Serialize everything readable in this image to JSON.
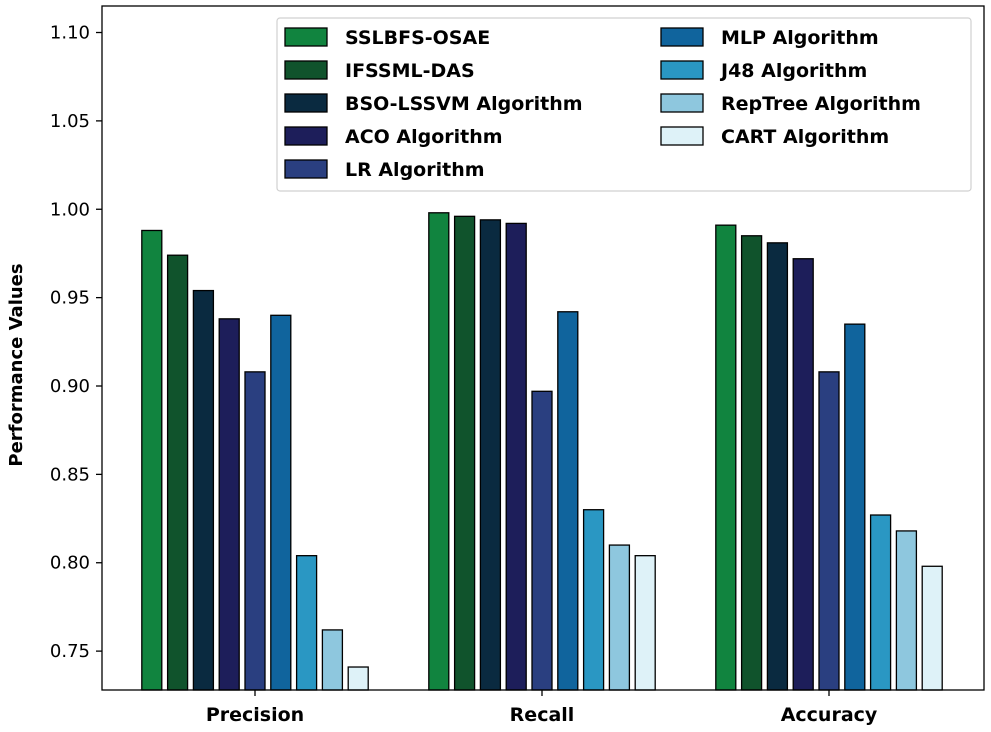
{
  "chart_data": {
    "type": "bar",
    "title": "",
    "xlabel": "",
    "ylabel": "Performance Values",
    "ylim": [
      0.728,
      1.115
    ],
    "yticks": [
      "0.75",
      "0.80",
      "0.85",
      "0.90",
      "0.95",
      "1.00",
      "1.05",
      "1.10"
    ],
    "grid": false,
    "legend_position": "top-right",
    "categories": [
      "Precision",
      "Recall",
      "Accuracy"
    ],
    "series": [
      {
        "name": "SSLBFS-OSAE",
        "color": "#11843f",
        "values": [
          0.988,
          0.998,
          0.991
        ]
      },
      {
        "name": "IFSSML-DAS",
        "color": "#10532c",
        "values": [
          0.974,
          0.996,
          0.985
        ]
      },
      {
        "name": "BSO-LSSVM Algorithm",
        "color": "#0a2a40",
        "values": [
          0.954,
          0.994,
          0.981
        ]
      },
      {
        "name": "ACO Algorithm",
        "color": "#1d1e5a",
        "values": [
          0.938,
          0.992,
          0.972
        ]
      },
      {
        "name": "LR Algorithm",
        "color": "#2a3f80",
        "values": [
          0.908,
          0.897,
          0.908
        ]
      },
      {
        "name": "MLP Algorithm",
        "color": "#10649d",
        "values": [
          0.94,
          0.942,
          0.935
        ]
      },
      {
        "name": "J48 Algorithm",
        "color": "#2a97c3",
        "values": [
          0.804,
          0.83,
          0.827
        ]
      },
      {
        "name": "RepTree Algorithm",
        "color": "#8ec7de",
        "values": [
          0.762,
          0.81,
          0.818
        ]
      },
      {
        "name": "CART Algorithm",
        "color": "#def2f8",
        "values": [
          0.741,
          0.804,
          0.798
        ]
      }
    ]
  }
}
